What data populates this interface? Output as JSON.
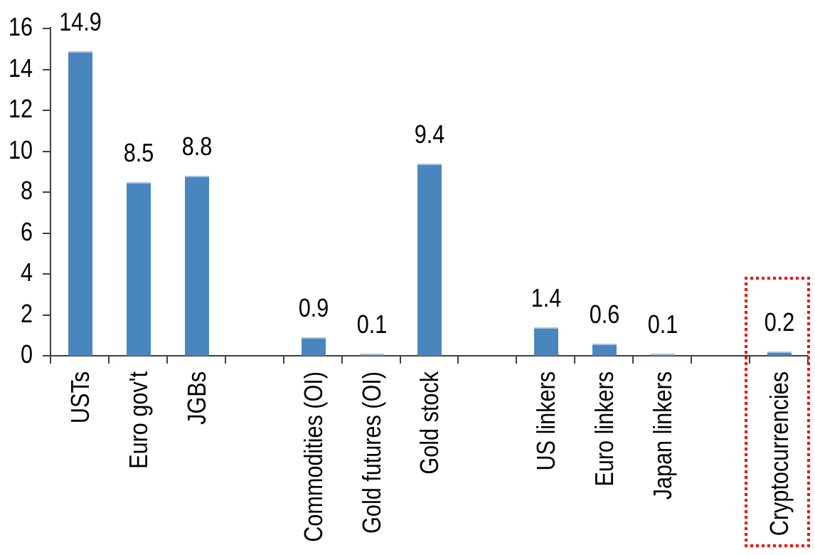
{
  "chart_data": {
    "type": "bar",
    "title": "",
    "xlabel": "",
    "ylabel": "",
    "categories": [
      "USTs",
      "Euro gov't",
      "JGBs",
      "Commodities (OI)",
      "Gold futures (OI)",
      "Gold stock",
      "US linkers",
      "Euro linkers",
      "Japan linkers",
      "Cryptocurrencies"
    ],
    "values": [
      14.9,
      8.5,
      8.8,
      0.9,
      0.1,
      9.4,
      1.4,
      0.6,
      0.1,
      0.2
    ],
    "data_labels": [
      "14.9",
      "8.5",
      "8.8",
      "0.9",
      "0.1",
      "9.4",
      "1.4",
      "0.6",
      "0.1",
      "0.2"
    ],
    "y_ticks": [
      0,
      2,
      4,
      6,
      8,
      10,
      12,
      14,
      16
    ],
    "ylim": [
      0,
      16
    ],
    "grid": "off",
    "legend": "none",
    "label_rotation": "vertical-bottom-to-top",
    "colors": {
      "bar_fill": "#4A86BE",
      "bar_top_highlight": "#A9C4DE",
      "axis": "#404040",
      "text": "#000000",
      "highlight_box": "#FF0000"
    },
    "highlight": {
      "category": "Cryptocurrencies",
      "style": "red-dotted-rectangle"
    },
    "layout": {
      "group_slots": [
        0,
        1,
        2,
        4,
        5,
        6,
        8,
        9,
        10,
        12
      ],
      "total_slots": 13
    }
  }
}
